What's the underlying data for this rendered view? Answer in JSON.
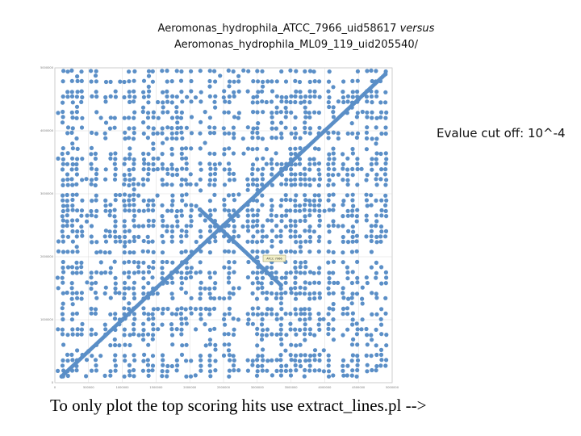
{
  "title": {
    "line1_prefix": "Aeromonas_hydrophila_ATCC_7966_uid58617",
    "line1_versus": "versus",
    "line2": "Aeromonas_hydrophila_ML09_119_uid205540/"
  },
  "annotation": "Evalue cut off: 10^-4",
  "footer": "To only plot the top scoring hits use extract_lines.pl -->",
  "colors": {
    "dots": "#5b8fc7",
    "grid": "#d9d9d9",
    "axis": "#9a9a9a",
    "tooltip_bg": "#f3f0c8"
  },
  "chart_data": {
    "type": "scatter",
    "title": "",
    "xlabel": "",
    "ylabel": "",
    "xlim": [
      0,
      5000000
    ],
    "ylim": [
      0,
      5000000
    ],
    "x_ticks": [
      "0",
      "500000",
      "1000000",
      "1500000",
      "2000000",
      "2500000",
      "3000000",
      "3500000",
      "4000000",
      "4500000",
      "5000000"
    ],
    "y_ticks": [
      "0",
      "1000000",
      "2000000",
      "3000000",
      "4000000",
      "5000000"
    ],
    "grid": true,
    "legend": "none",
    "series": [
      {
        "description": "main diagonal of syntenic hits",
        "points": [
          [
            100000,
            100000
          ],
          [
            500000,
            500000
          ],
          [
            1000000,
            1000000
          ],
          [
            1500000,
            1500000
          ],
          [
            2000000,
            2000000
          ],
          [
            2500000,
            2500000
          ],
          [
            3000000,
            3000000
          ],
          [
            3500000,
            3500000
          ],
          [
            4000000,
            4000000
          ],
          [
            4500000,
            4500000
          ],
          [
            4900000,
            4900000
          ]
        ]
      },
      {
        "description": "inverted segment",
        "points": [
          [
            2150000,
            2750000
          ],
          [
            2550000,
            2350000
          ],
          [
            2950000,
            1950000
          ],
          [
            3350000,
            1550000
          ]
        ]
      }
    ],
    "hover_label": "ATCC 7966"
  }
}
